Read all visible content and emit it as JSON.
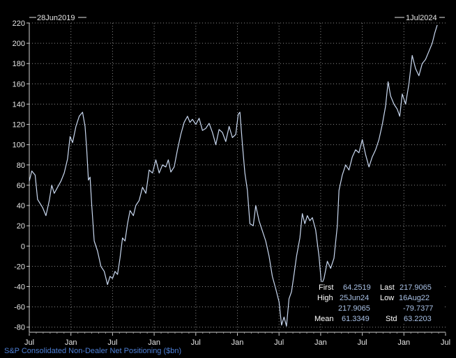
{
  "chart_data": {
    "type": "line",
    "start_label": "28Jun2019",
    "end_label": "1Jul2024",
    "title": "S&P Consolidated Non-Dealer Net Positioning ($bn)",
    "ylim": [
      -85,
      220
    ],
    "y_ticks": [
      "220",
      "200",
      "180",
      "160",
      "140",
      "120",
      "100",
      "80",
      "60",
      "40",
      "20",
      "0",
      "-20",
      "-40",
      "-60",
      "-80"
    ],
    "x_ticks": [
      {
        "label": "Jul",
        "t": 0
      },
      {
        "label": "Jan",
        "t": 0.5
      },
      {
        "label": "Jul",
        "t": 1
      },
      {
        "label": "Jan",
        "t": 1.5
      },
      {
        "label": "Jul",
        "t": 2
      },
      {
        "label": "Jan",
        "t": 2.5
      },
      {
        "label": "Jul",
        "t": 3
      },
      {
        "label": "Jan",
        "t": 3.5
      },
      {
        "label": "Jul",
        "t": 4
      },
      {
        "label": "Jan",
        "t": 4.5
      },
      {
        "label": "Jul",
        "t": 5
      }
    ],
    "grid": true,
    "line_color": "#c9d8f0",
    "series": [
      {
        "points": [
          [
            0.0,
            64
          ],
          [
            0.03,
            74
          ],
          [
            0.07,
            70
          ],
          [
            0.1,
            46
          ],
          [
            0.16,
            38
          ],
          [
            0.2,
            30
          ],
          [
            0.24,
            45
          ],
          [
            0.27,
            60
          ],
          [
            0.3,
            52
          ],
          [
            0.34,
            58
          ],
          [
            0.38,
            64
          ],
          [
            0.42,
            72
          ],
          [
            0.46,
            86
          ],
          [
            0.49,
            108
          ],
          [
            0.52,
            102
          ],
          [
            0.56,
            118
          ],
          [
            0.6,
            128
          ],
          [
            0.64,
            132
          ],
          [
            0.67,
            118
          ],
          [
            0.69,
            95
          ],
          [
            0.71,
            65
          ],
          [
            0.73,
            68
          ],
          [
            0.75,
            40
          ],
          [
            0.78,
            5
          ],
          [
            0.82,
            -5
          ],
          [
            0.86,
            -20
          ],
          [
            0.9,
            -25
          ],
          [
            0.94,
            -38
          ],
          [
            0.97,
            -30
          ],
          [
            1.0,
            -32
          ],
          [
            1.03,
            -25
          ],
          [
            1.06,
            -28
          ],
          [
            1.09,
            -12
          ],
          [
            1.12,
            8
          ],
          [
            1.15,
            5
          ],
          [
            1.18,
            22
          ],
          [
            1.21,
            35
          ],
          [
            1.25,
            30
          ],
          [
            1.28,
            40
          ],
          [
            1.32,
            45
          ],
          [
            1.36,
            58
          ],
          [
            1.4,
            52
          ],
          [
            1.44,
            75
          ],
          [
            1.48,
            72
          ],
          [
            1.52,
            85
          ],
          [
            1.56,
            72
          ],
          [
            1.6,
            80
          ],
          [
            1.64,
            78
          ],
          [
            1.67,
            85
          ],
          [
            1.7,
            73
          ],
          [
            1.74,
            78
          ],
          [
            1.78,
            95
          ],
          [
            1.82,
            110
          ],
          [
            1.86,
            122
          ],
          [
            1.9,
            128
          ],
          [
            1.93,
            122
          ],
          [
            1.96,
            125
          ],
          [
            2.0,
            120
          ],
          [
            2.04,
            126
          ],
          [
            2.08,
            114
          ],
          [
            2.12,
            116
          ],
          [
            2.16,
            121
          ],
          [
            2.2,
            112
          ],
          [
            2.24,
            100
          ],
          [
            2.28,
            115
          ],
          [
            2.32,
            112
          ],
          [
            2.36,
            103
          ],
          [
            2.4,
            118
          ],
          [
            2.44,
            107
          ],
          [
            2.48,
            110
          ],
          [
            2.51,
            130
          ],
          [
            2.53,
            132
          ],
          [
            2.56,
            100
          ],
          [
            2.59,
            72
          ],
          [
            2.62,
            55
          ],
          [
            2.65,
            22
          ],
          [
            2.69,
            20
          ],
          [
            2.72,
            40
          ],
          [
            2.76,
            25
          ],
          [
            2.8,
            15
          ],
          [
            2.84,
            5
          ],
          [
            2.88,
            -10
          ],
          [
            2.92,
            -30
          ],
          [
            2.96,
            -42
          ],
          [
            3.0,
            -55
          ],
          [
            3.03,
            -78
          ],
          [
            3.06,
            -70
          ],
          [
            3.09,
            -79
          ],
          [
            3.12,
            -52
          ],
          [
            3.15,
            -45
          ],
          [
            3.18,
            -28
          ],
          [
            3.21,
            -10
          ],
          [
            3.25,
            8
          ],
          [
            3.28,
            32
          ],
          [
            3.31,
            22
          ],
          [
            3.34,
            30
          ],
          [
            3.37,
            25
          ],
          [
            3.4,
            28
          ],
          [
            3.44,
            16
          ],
          [
            3.48,
            -10
          ],
          [
            3.51,
            -38
          ],
          [
            3.54,
            -32
          ],
          [
            3.58,
            -15
          ],
          [
            3.62,
            -22
          ],
          [
            3.66,
            -12
          ],
          [
            3.7,
            20
          ],
          [
            3.72,
            55
          ],
          [
            3.76,
            70
          ],
          [
            3.8,
            80
          ],
          [
            3.84,
            75
          ],
          [
            3.88,
            88
          ],
          [
            3.92,
            95
          ],
          [
            3.96,
            92
          ],
          [
            4.0,
            105
          ],
          [
            4.04,
            90
          ],
          [
            4.08,
            78
          ],
          [
            4.12,
            88
          ],
          [
            4.16,
            95
          ],
          [
            4.2,
            105
          ],
          [
            4.24,
            120
          ],
          [
            4.28,
            138
          ],
          [
            4.31,
            162
          ],
          [
            4.34,
            148
          ],
          [
            4.38,
            140
          ],
          [
            4.42,
            135
          ],
          [
            4.45,
            128
          ],
          [
            4.48,
            150
          ],
          [
            4.52,
            140
          ],
          [
            4.56,
            160
          ],
          [
            4.6,
            188
          ],
          [
            4.64,
            175
          ],
          [
            4.68,
            168
          ],
          [
            4.72,
            180
          ],
          [
            4.76,
            184
          ],
          [
            4.8,
            192
          ],
          [
            4.84,
            200
          ],
          [
            4.87,
            210
          ],
          [
            4.9,
            218
          ]
        ]
      }
    ],
    "stats": {
      "first_label": "First",
      "first_value": "64.2519",
      "last_label": "Last",
      "last_value": "217.9065",
      "high_label": "High",
      "high_date": "25Jun24",
      "low_label": "Low",
      "low_date": "16Aug22",
      "high_value": "217.9065",
      "low_value": "-79.7377",
      "mean_label": "Mean",
      "mean_value": "61.3349",
      "std_label": "Std",
      "std_value": "63.2203"
    }
  }
}
